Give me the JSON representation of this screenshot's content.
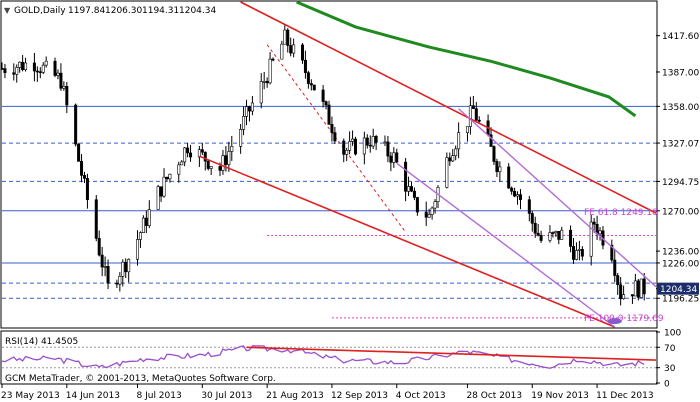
{
  "chart_data": [
    {
      "type": "candlestick",
      "title": "GOLD,Daily",
      "ohlc_header": [
        "1197.84",
        "1206.30",
        "1194.31",
        "1204.34"
      ],
      "xlim": [
        "2013-05-23",
        "2013-12-31"
      ],
      "ylim": [
        1172,
        1446
      ],
      "y_ticks": [
        1417.6,
        1387.0,
        1358.0,
        1327.07,
        1294.75,
        1270.0,
        1236.0,
        1226.0,
        1204.34,
        1196.25
      ],
      "y_tick_labels": [
        "1417.60",
        "1387.00",
        "1358.00",
        "1327.07",
        "1294.75",
        "1270.00",
        "1236.00",
        "1226.00",
        "1204.34",
        "1196.25"
      ],
      "price_badge": {
        "value": 1204.34,
        "label": "1204.34",
        "color": "#1c2d6b"
      },
      "horizontal_levels": [
        {
          "value": 1358.0,
          "style": "solid",
          "color": "#3a5fd0"
        },
        {
          "value": 1327.07,
          "style": "dashed",
          "color": "#3a5fd0"
        },
        {
          "value": 1294.75,
          "style": "dashed",
          "color": "#3a5fd0"
        },
        {
          "value": 1270.0,
          "style": "solid",
          "color": "#3a5fd0"
        },
        {
          "value": 1226.0,
          "style": "solid",
          "color": "#3a5fd0"
        },
        {
          "value": 1209.0,
          "style": "dashed",
          "color": "#3a5fd0"
        },
        {
          "value": 1196.25,
          "style": "dashed",
          "color": "#3a5fd0"
        }
      ],
      "annotations": [
        {
          "text": "FE 61.8 1249.18",
          "value": 1249.18,
          "color": "#cc44cc"
        },
        {
          "text": "FE 100.0 1179.69",
          "value": 1179.69,
          "color": "#cc44cc"
        }
      ],
      "series": [
        {
          "name": "",
          "kind": "candles",
          "color": "#000000"
        },
        {
          "name": "",
          "kind": "moving-average",
          "color": "#1f8a1f"
        }
      ],
      "trend_lines": [
        {
          "color": "#e02020",
          "points": [
            [
              "2013-08-12",
              1446
            ],
            [
              "2013-12-31",
              1268
            ]
          ]
        },
        {
          "color": "#e02020",
          "points": [
            [
              "2013-07-29",
              1316
            ],
            [
              "2013-12-17",
              1172
            ]
          ]
        },
        {
          "color": "#b46ad6",
          "points": [
            [
              "2013-10-25",
              1356
            ],
            [
              "2013-12-31",
              1206
            ]
          ]
        },
        {
          "color": "#b46ad6",
          "points": [
            [
              "2013-10-04",
              1310
            ],
            [
              "2013-12-17",
              1172
            ]
          ]
        }
      ],
      "grid": false
    },
    {
      "type": "line",
      "title": "RSI(14) 41.4505",
      "ylim": [
        0,
        100
      ],
      "y_ticks": [
        100,
        70,
        30,
        0
      ],
      "y_tick_labels": [
        "100",
        "70",
        "30",
        "0"
      ],
      "levels": [
        70,
        30
      ],
      "series": [
        {
          "name": "",
          "color": "#9a4ecf"
        }
      ],
      "trend_lines": [
        {
          "color": "#e02020",
          "points": [
            [
              "2013-08-14",
              70
            ],
            [
              "2013-12-31",
              45
            ]
          ]
        }
      ],
      "footer": "GCM MetaTrader, © 2001-2013, MetaQuotes Software Corp."
    }
  ],
  "x_ticks": [
    "2013-05-23",
    "2013-06-14",
    "2013-07-08",
    "2013-07-30",
    "2013-08-21",
    "2013-09-12",
    "2013-10-04",
    "2013-10-28",
    "2013-11-19",
    "2013-12-11"
  ],
  "x_tick_labels": [
    "23 May 2013",
    "14 Jun 2013",
    "8 Jul 2013",
    "30 Jul 2013",
    "21 Aug 2013",
    "12 Sep 2013",
    "4 Oct 2013",
    "28 Oct 2013",
    "19 Nov 2013",
    "11 Dec 2013"
  ]
}
